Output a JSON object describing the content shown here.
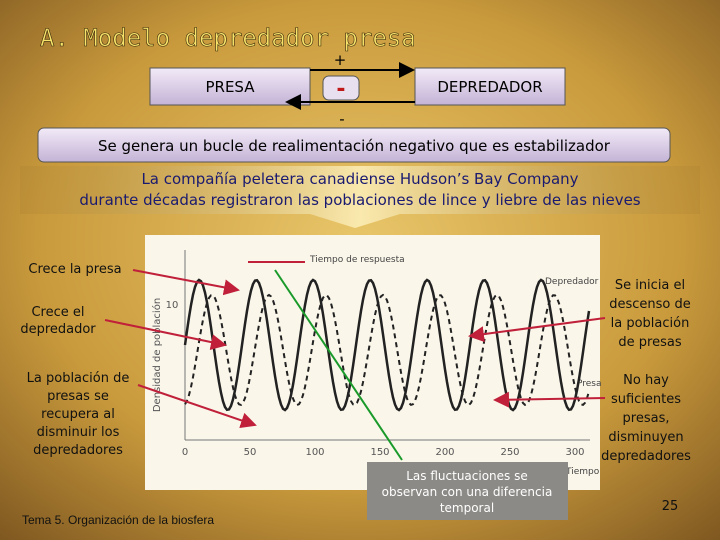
{
  "title": "A. Modelo depredador presa",
  "loop": {
    "left": "PRESA",
    "right": "DEPREDADOR",
    "top_sign": "+",
    "center_sign": "-",
    "bottom_sign": "-"
  },
  "banner": "Se genera un bucle de realimentación negativo que es estabilizador",
  "intro": [
    "La compañía peletera canadiense Hudson’s Bay Company",
    "durante décadas registraron las poblaciones de lince y liebre de las nieves"
  ],
  "figure": {
    "y_label": "Densidad de población",
    "y_tick": "10",
    "x_ticks": [
      "0",
      "50",
      "100",
      "150",
      "200",
      "250",
      "300"
    ],
    "x_label": "Tiempo",
    "response_label": "Tiempo de respuesta",
    "predator_label": "Depredador",
    "prey_label": "Presa"
  },
  "annotations": {
    "prey_grows": "Crece la presa",
    "predator_grows": [
      "Crece el",
      "depredador"
    ],
    "prey_recovers": [
      "La población de",
      "presas se",
      "recupera al",
      "disminuir los",
      "depredadores"
    ],
    "prey_declines": [
      "Se inicia el",
      "descenso de",
      "la población",
      "de presas"
    ],
    "predators_decline": [
      "No hay",
      "suficientes",
      "presas,",
      "disminuyen",
      "depredadores"
    ],
    "lag": [
      "Las fluctuaciones se",
      "observan con una diferencia",
      "temporal"
    ]
  },
  "footer": "Tema 5. Organización de la biosfera",
  "page": "25"
}
